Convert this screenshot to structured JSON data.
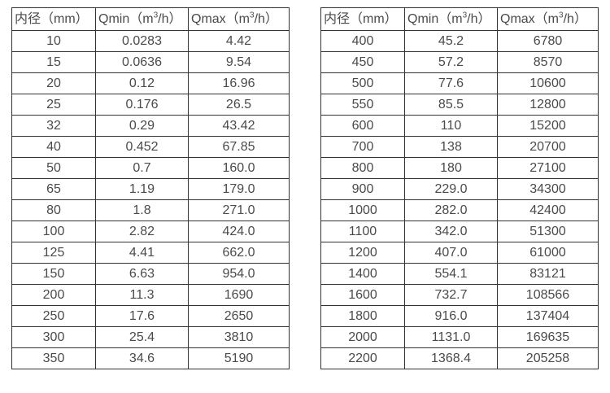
{
  "colors": {
    "border": "#333333",
    "text": "#4a4a4a",
    "background": "#ffffff"
  },
  "tables": [
    {
      "name": "flow-table-small-diameters",
      "columns": [
        {
          "label": "内径（mm）"
        },
        {
          "pre": "Qmin（m",
          "sup": "3",
          "post": "/h）"
        },
        {
          "pre": "Qmax（m",
          "sup": "3",
          "post": "/h）"
        }
      ],
      "rows": [
        [
          "10",
          "0.0283",
          "4.42"
        ],
        [
          "15",
          "0.0636",
          "9.54"
        ],
        [
          "20",
          "0.12",
          "16.96"
        ],
        [
          "25",
          "0.176",
          "26.5"
        ],
        [
          "32",
          "0.29",
          "43.42"
        ],
        [
          "40",
          "0.452",
          "67.85"
        ],
        [
          "50",
          "0.7",
          "160.0"
        ],
        [
          "65",
          "1.19",
          "179.0"
        ],
        [
          "80",
          "1.8",
          "271.0"
        ],
        [
          "100",
          "2.82",
          "424.0"
        ],
        [
          "125",
          "4.41",
          "662.0"
        ],
        [
          "150",
          "6.63",
          "954.0"
        ],
        [
          "200",
          "11.3",
          "1690"
        ],
        [
          "250",
          "17.6",
          "2650"
        ],
        [
          "300",
          "25.4",
          "3810"
        ],
        [
          "350",
          "34.6",
          "5190"
        ]
      ]
    },
    {
      "name": "flow-table-large-diameters",
      "columns": [
        {
          "label": "内径（mm）"
        },
        {
          "pre": "Qmin（m",
          "sup": "3",
          "post": "/h）"
        },
        {
          "pre": "Qmax（m",
          "sup": "3",
          "post": "/h）"
        }
      ],
      "rows": [
        [
          "400",
          "45.2",
          "6780"
        ],
        [
          "450",
          "57.2",
          "8570"
        ],
        [
          "500",
          "77.6",
          "10600"
        ],
        [
          "550",
          "85.5",
          "12800"
        ],
        [
          "600",
          "110",
          "15200"
        ],
        [
          "700",
          "138",
          "20700"
        ],
        [
          "800",
          "180",
          "27100"
        ],
        [
          "900",
          "229.0",
          "34300"
        ],
        [
          "1000",
          "282.0",
          "42400"
        ],
        [
          "1100",
          "342.0",
          "51300"
        ],
        [
          "1200",
          "407.0",
          "61000"
        ],
        [
          "1400",
          "554.1",
          "83121"
        ],
        [
          "1600",
          "732.7",
          "108566"
        ],
        [
          "1800",
          "916.0",
          "137404"
        ],
        [
          "2000",
          "1131.0",
          "169635"
        ],
        [
          "2200",
          "1368.4",
          "205258"
        ]
      ]
    }
  ]
}
